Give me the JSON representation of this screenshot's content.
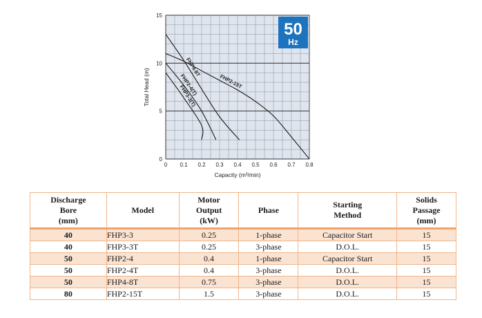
{
  "badge": {
    "freq_number": "50",
    "freq_unit": "Hz",
    "color": "#1e73be"
  },
  "chart_data": {
    "type": "line",
    "xlabel": "Capacity (m³/min)",
    "ylabel": "Total Head (m)",
    "xlim": [
      0,
      0.8
    ],
    "ylim": [
      0,
      15
    ],
    "x_ticks": [
      "0",
      "0.1",
      "0.2",
      "0.3",
      "0.4",
      "0.5",
      "0.6",
      "0.7",
      "0.8"
    ],
    "y_ticks": [
      "0",
      "5",
      "10",
      "15"
    ],
    "grid": true,
    "series": [
      {
        "name": "FHP2-15T",
        "points": [
          [
            0,
            11
          ],
          [
            0.1,
            10.2
          ],
          [
            0.2,
            9.2
          ],
          [
            0.3,
            8.2
          ],
          [
            0.4,
            7.2
          ],
          [
            0.5,
            6.0
          ],
          [
            0.6,
            4.5
          ],
          [
            0.7,
            2.3
          ],
          [
            0.8,
            0
          ]
        ]
      },
      {
        "name": "FHP4-8T",
        "points": [
          [
            0,
            13
          ],
          [
            0.1,
            10.3
          ],
          [
            0.2,
            7.3
          ],
          [
            0.3,
            4.4
          ],
          [
            0.41,
            2.0
          ]
        ]
      },
      {
        "name": "FHP2-4(T)",
        "points": [
          [
            0,
            10
          ],
          [
            0.1,
            7.7
          ],
          [
            0.2,
            5.0
          ],
          [
            0.28,
            2.0
          ]
        ]
      },
      {
        "name": "FHP3-3(T)",
        "points": [
          [
            0,
            9
          ],
          [
            0.1,
            6.4
          ],
          [
            0.2,
            3.5
          ],
          [
            0.2,
            2.0
          ]
        ]
      }
    ]
  },
  "table": {
    "headers": [
      "Discharge\nBore\n(mm)",
      "Model",
      "Motor\nOutput\n(kW)",
      "Phase",
      "Starting\nMethod",
      "Solids\nPassage\n(mm)"
    ],
    "rows": [
      [
        "40",
        "FHP3-3",
        "0.25",
        "1-phase",
        "Capacitor Start",
        "15"
      ],
      [
        "40",
        "FHP3-3T",
        "0.25",
        "3-phase",
        "D.O.L.",
        "15"
      ],
      [
        "50",
        "FHP2-4",
        "0.4",
        "1-phase",
        "Capacitor Start",
        "15"
      ],
      [
        "50",
        "FHP2-4T",
        "0.4",
        "3-phase",
        "D.O.L.",
        "15"
      ],
      [
        "50",
        "FHP4-8T",
        "0.75",
        "3-phase",
        "D.O.L.",
        "15"
      ],
      [
        "80",
        "FHP2-15T",
        "1.5",
        "3-phase",
        "D.O.L.",
        "15"
      ]
    ]
  },
  "colors": {
    "plot_bg": "#dfe5ee",
    "grid": "#8a8f98",
    "curve": "#1a1a1a",
    "table_border": "#f0b488",
    "row_shade": "#fbe3d2"
  }
}
